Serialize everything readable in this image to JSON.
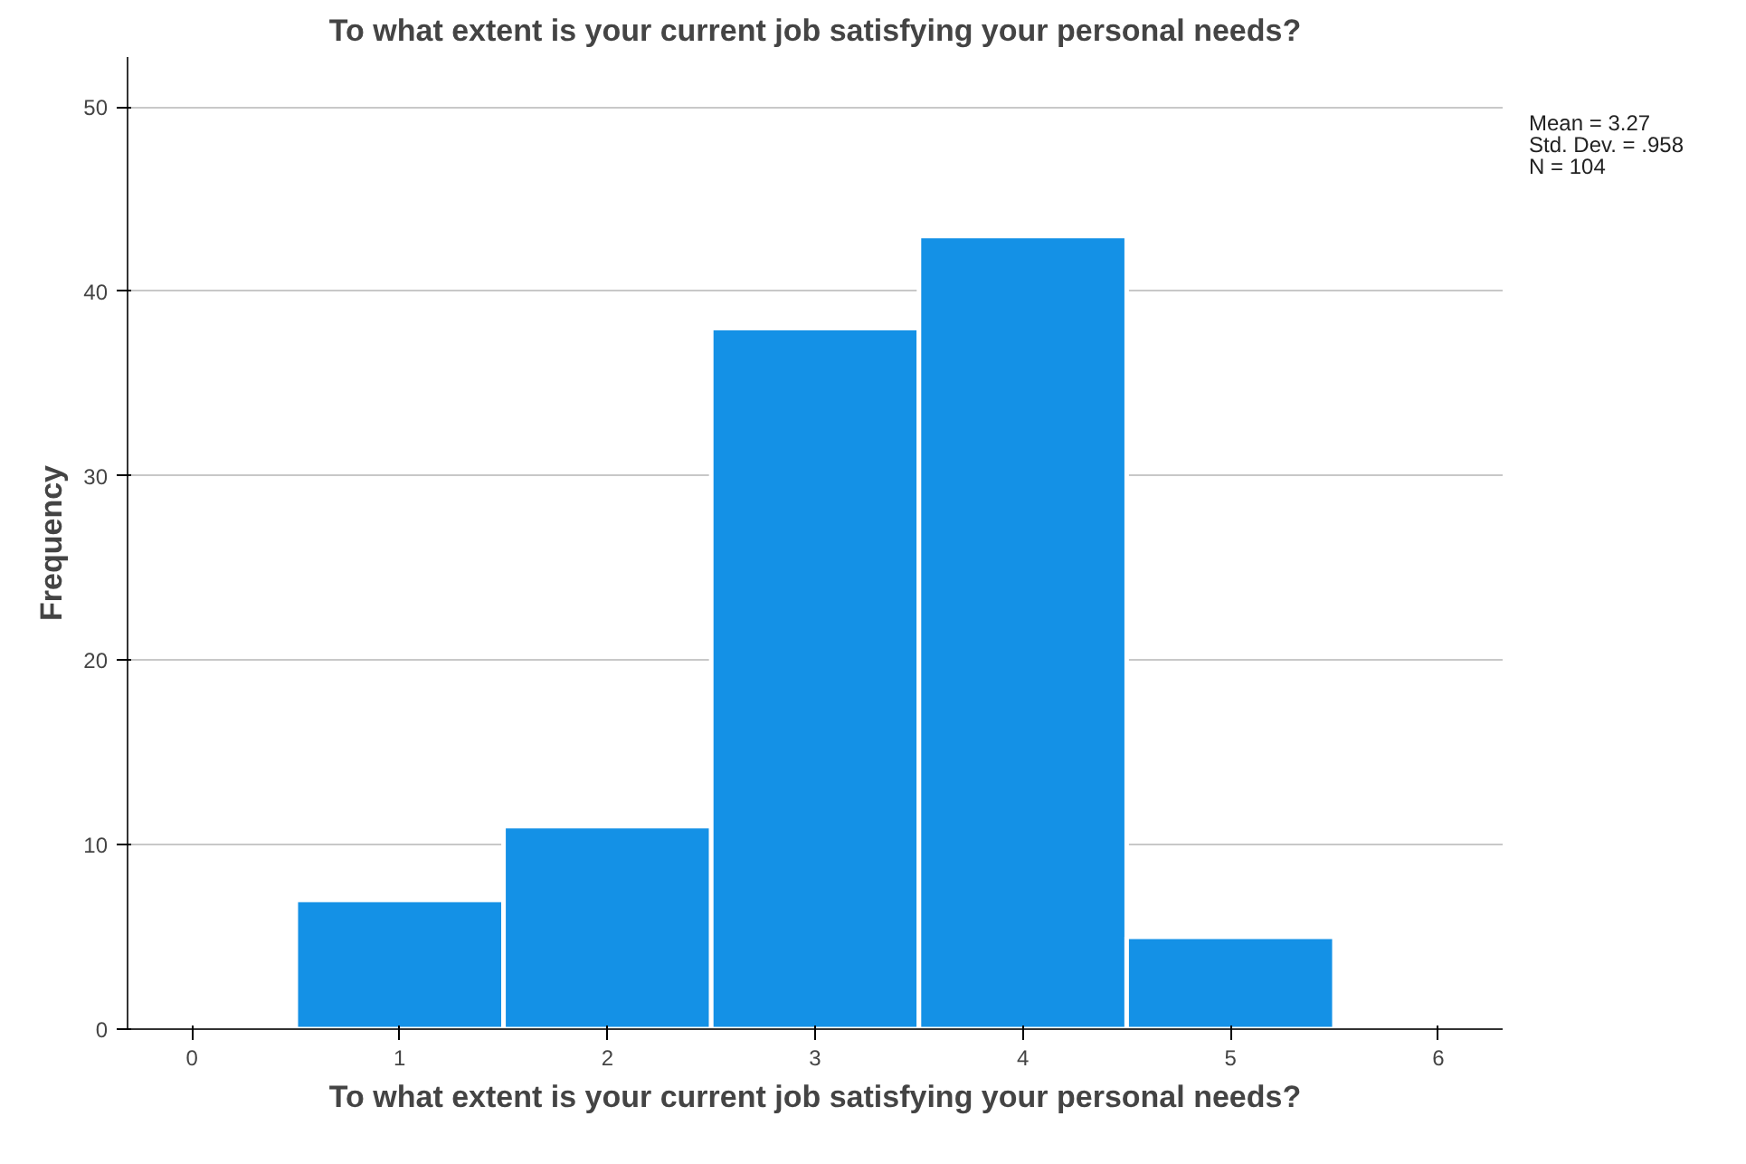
{
  "chart_data": {
    "type": "histogram",
    "title": "To what extent is your current job satisfying your personal needs?",
    "xlabel": "To what extent is your current job satisfying your personal needs?",
    "ylabel": "Frequency",
    "bins": [
      0.5,
      1.5,
      2.5,
      3.5,
      4.5,
      5.5
    ],
    "values": [
      7,
      11,
      38,
      43,
      5
    ],
    "color": "#1491e6",
    "xlim": [
      -0.31,
      6.31
    ],
    "xticks": [
      0,
      1,
      2,
      3,
      4,
      5,
      6
    ],
    "ylim": [
      0,
      52.7
    ],
    "yticks": [
      0,
      10,
      20,
      30,
      40,
      50
    ],
    "grid": "y",
    "annotations": [
      "Mean = 3.27",
      "Std. Dev. = .958",
      "N = 104"
    ]
  }
}
